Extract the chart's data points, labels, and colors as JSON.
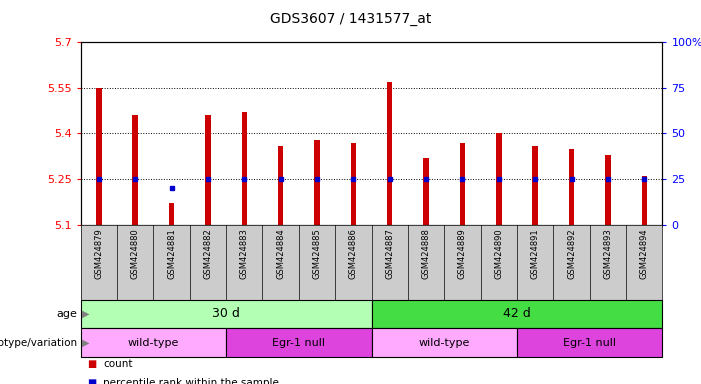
{
  "title": "GDS3607 / 1431577_at",
  "samples": [
    "GSM424879",
    "GSM424880",
    "GSM424881",
    "GSM424882",
    "GSM424883",
    "GSM424884",
    "GSM424885",
    "GSM424886",
    "GSM424887",
    "GSM424888",
    "GSM424889",
    "GSM424890",
    "GSM424891",
    "GSM424892",
    "GSM424893",
    "GSM424894"
  ],
  "count_values": [
    5.55,
    5.46,
    5.17,
    5.46,
    5.47,
    5.36,
    5.38,
    5.37,
    5.57,
    5.32,
    5.37,
    5.4,
    5.36,
    5.35,
    5.33,
    5.26
  ],
  "percentile_values": [
    5.25,
    5.25,
    5.22,
    5.25,
    5.25,
    5.25,
    5.25,
    5.25,
    5.25,
    5.25,
    5.25,
    5.25,
    5.25,
    5.25,
    5.25,
    5.25
  ],
  "ylim_left": [
    5.1,
    5.7
  ],
  "ylim_right": [
    0,
    100
  ],
  "yticks_left": [
    5.1,
    5.25,
    5.4,
    5.55,
    5.7
  ],
  "yticks_right": [
    0,
    25,
    50,
    75,
    100
  ],
  "ytick_labels_right": [
    "0",
    "25",
    "50",
    "75",
    "100%"
  ],
  "bar_color": "#cc0000",
  "dot_color": "#0000cc",
  "bar_bottom": 5.1,
  "bar_width": 0.15,
  "age_groups": [
    {
      "label": "30 d",
      "start": 0,
      "end": 8,
      "color": "#b3ffb3"
    },
    {
      "label": "42 d",
      "start": 8,
      "end": 16,
      "color": "#44dd44"
    }
  ],
  "genotype_groups": [
    {
      "label": "wild-type",
      "start": 0,
      "end": 4,
      "color": "#ffaaff"
    },
    {
      "label": "Egr-1 null",
      "start": 4,
      "end": 8,
      "color": "#dd44dd"
    },
    {
      "label": "wild-type",
      "start": 8,
      "end": 12,
      "color": "#ffaaff"
    },
    {
      "label": "Egr-1 null",
      "start": 12,
      "end": 16,
      "color": "#dd44dd"
    }
  ],
  "legend_count_label": "count",
  "legend_pct_label": "percentile rank within the sample",
  "age_label": "age",
  "genotype_label": "genotype/variation",
  "background_color": "#ffffff",
  "sample_bg_color": "#cccccc",
  "grid_dotted_at": [
    5.25,
    5.4,
    5.55
  ]
}
